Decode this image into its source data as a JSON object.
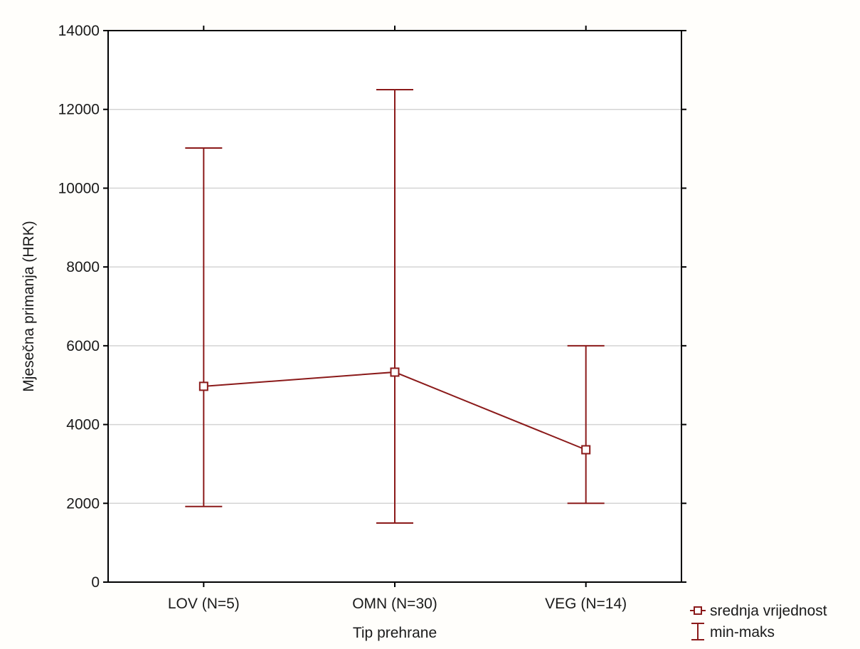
{
  "chart_data": {
    "type": "line",
    "title": "",
    "xlabel": "Tip prehrane",
    "ylabel": "Mjesečna primanja (HRK)",
    "categories": [
      "LOV (N=5)",
      "OMN (N=30)",
      "VEG (N=14)"
    ],
    "ylim": [
      0,
      14000
    ],
    "yticks": [
      0,
      2000,
      4000,
      6000,
      8000,
      10000,
      12000,
      14000
    ],
    "grid": true,
    "legend_position": "bottom-right, outside plot",
    "series": [
      {
        "name": "srednja vrijednost",
        "kind": "mean-line",
        "values": [
          4970,
          5330,
          3360
        ]
      },
      {
        "name": "min-maks",
        "kind": "error-bars",
        "min": [
          1920,
          1500,
          2000
        ],
        "max": [
          11020,
          12500,
          6000
        ]
      }
    ],
    "colors": {
      "series": "#8b1a1a",
      "grid": "#d4d4d4",
      "frame": "#000000",
      "background": "#fffefb"
    }
  }
}
